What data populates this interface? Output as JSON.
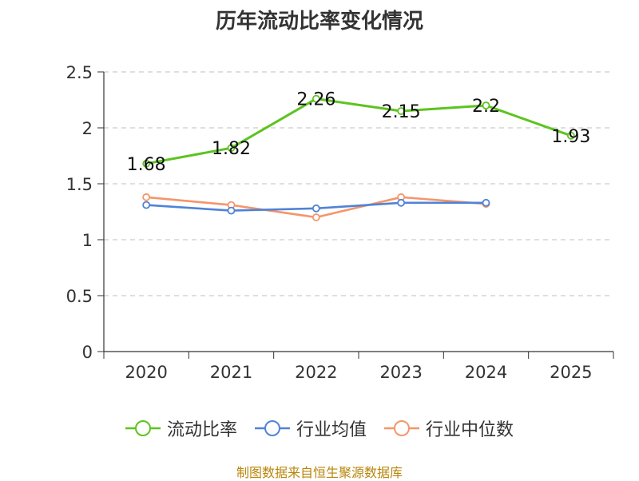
{
  "chart_data": {
    "type": "line",
    "title": "历年流动比率变化情况",
    "categories": [
      "2020",
      "2021",
      "2022",
      "2023",
      "2024",
      "2025"
    ],
    "ylim": [
      0,
      2.5
    ],
    "yticks": [
      "0",
      "0.5",
      "1",
      "1.5",
      "2",
      "2.5"
    ],
    "grid": true,
    "legend_position": "bottom",
    "series": [
      {
        "name": "流动比率",
        "color": "#5cc41e",
        "values": [
          1.68,
          1.82,
          2.26,
          2.15,
          2.2,
          1.93
        ],
        "labels": [
          "1.68",
          "1.82",
          "2.26",
          "2.15",
          "2.2",
          "1.93"
        ]
      },
      {
        "name": "行业均值",
        "color": "#5083d8",
        "values": [
          1.31,
          1.26,
          1.28,
          1.33,
          1.33,
          null
        ]
      },
      {
        "name": "行业中位数",
        "color": "#f5956a",
        "values": [
          1.38,
          1.31,
          1.2,
          1.38,
          1.32,
          null
        ]
      }
    ]
  },
  "source": "制图数据来自恒生聚源数据库"
}
